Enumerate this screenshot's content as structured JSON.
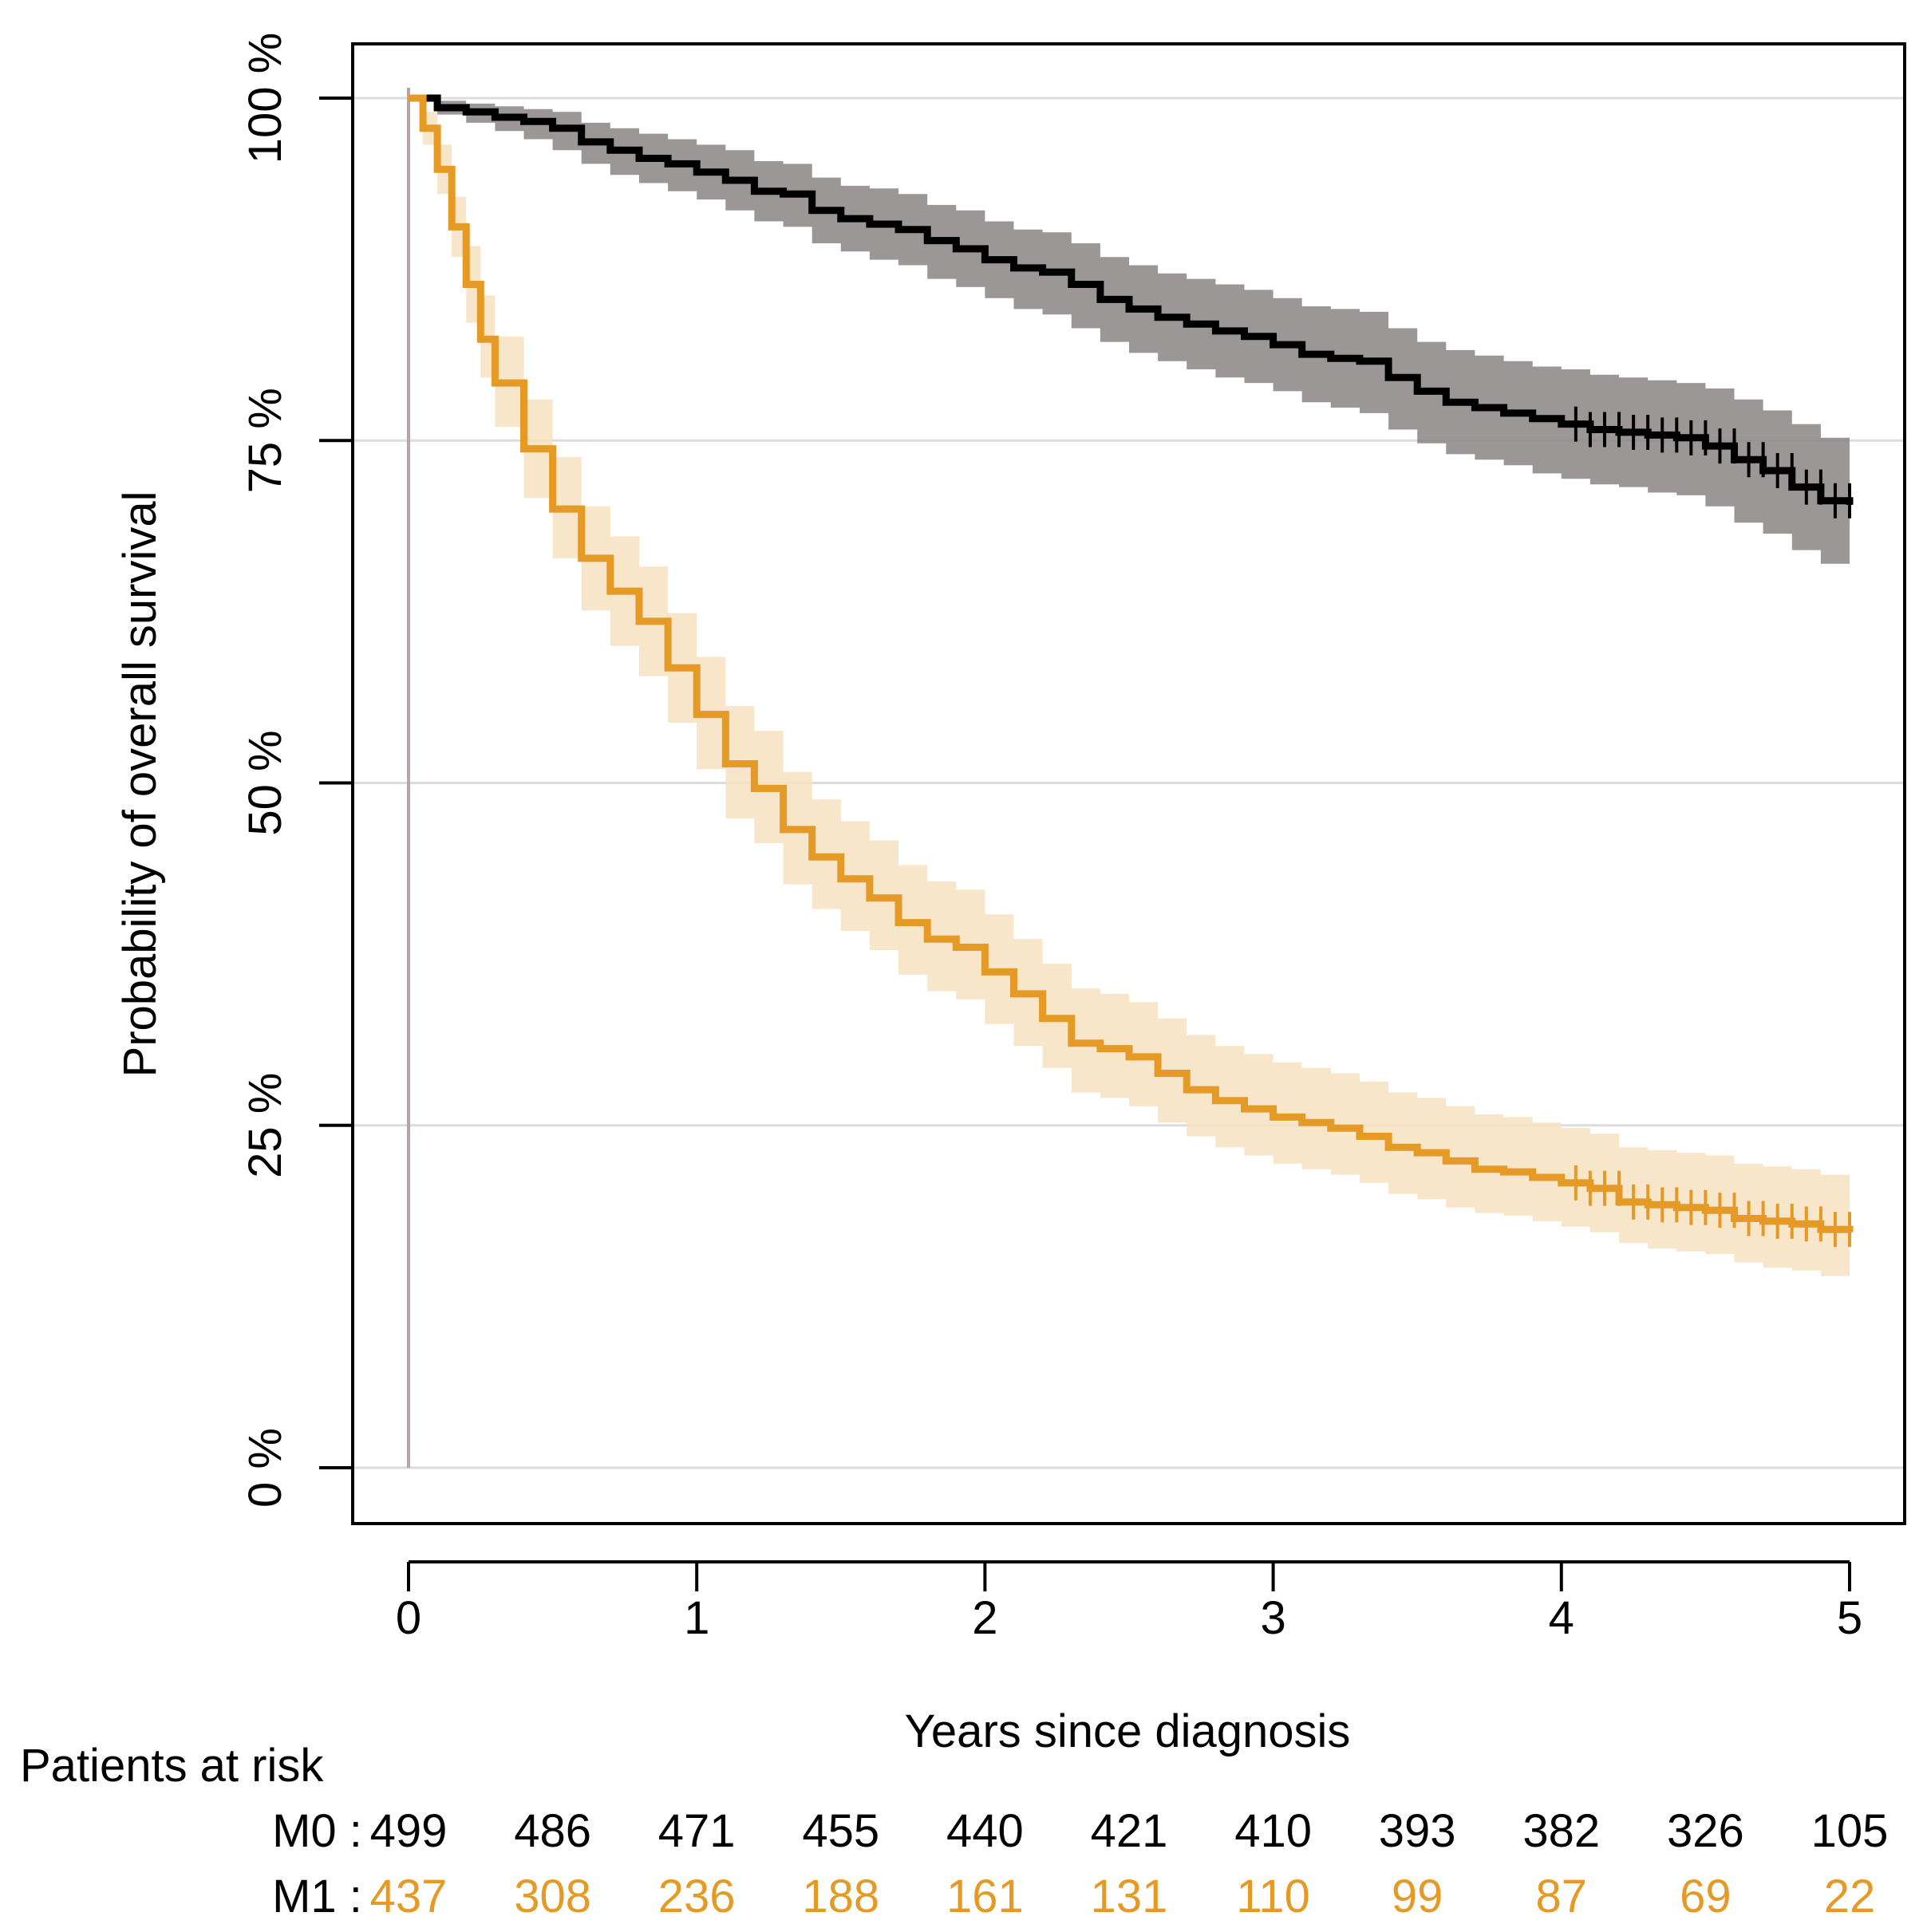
{
  "chart_data": {
    "type": "line",
    "subtype": "kaplan-meier",
    "title": "",
    "xlabel": "Years since diagnosis",
    "ylabel": "Probability of overall survival",
    "xlim": [
      0,
      5
    ],
    "ylim": [
      0,
      100
    ],
    "x_ticks": [
      "0",
      "1",
      "2",
      "3",
      "4",
      "5"
    ],
    "y_ticks": [
      "0 %",
      "25 %",
      "50 %",
      "75 %",
      "100 %"
    ],
    "grid": "horizontal",
    "series": [
      {
        "name": "M0",
        "color": "#000000",
        "band_color": "#8a8585",
        "x": [
          0,
          0.1,
          0.2,
          0.3,
          0.4,
          0.5,
          0.6,
          0.7,
          0.8,
          0.9,
          1.0,
          1.1,
          1.2,
          1.3,
          1.4,
          1.5,
          1.6,
          1.7,
          1.8,
          1.9,
          2.0,
          2.1,
          2.2,
          2.3,
          2.4,
          2.5,
          2.6,
          2.7,
          2.8,
          2.9,
          3.0,
          3.1,
          3.2,
          3.3,
          3.4,
          3.5,
          3.6,
          3.7,
          3.8,
          3.9,
          4.0,
          4.1,
          4.2,
          4.3,
          4.4,
          4.5,
          4.6,
          4.7,
          4.8,
          4.9,
          5.0
        ],
        "y": [
          100,
          99.3,
          99.0,
          98.6,
          98.3,
          97.8,
          96.8,
          96.2,
          95.6,
          95.2,
          94.6,
          94.0,
          93.2,
          93.0,
          91.8,
          91.2,
          90.8,
          90.4,
          89.6,
          89.0,
          88.2,
          87.6,
          87.3,
          86.4,
          85.3,
          84.6,
          84.0,
          83.5,
          83.0,
          82.6,
          82.0,
          81.3,
          81.0,
          80.8,
          79.6,
          78.6,
          77.8,
          77.4,
          77.0,
          76.6,
          76.2,
          75.8,
          75.6,
          75.4,
          75.2,
          74.6,
          73.6,
          72.8,
          71.6,
          70.6,
          70.3
        ],
        "lower": [
          100,
          98.8,
          98.2,
          97.6,
          97.0,
          96.2,
          95.2,
          94.4,
          93.8,
          93.2,
          92.6,
          91.8,
          91.0,
          90.6,
          89.4,
          88.8,
          88.2,
          87.8,
          86.8,
          86.2,
          85.4,
          84.6,
          84.2,
          83.2,
          82.2,
          81.4,
          80.8,
          80.2,
          79.6,
          79.2,
          78.6,
          77.8,
          77.4,
          77.0,
          75.8,
          74.8,
          74.0,
          73.6,
          73.2,
          72.6,
          72.2,
          71.8,
          71.6,
          71.2,
          71.0,
          70.2,
          69.0,
          68.2,
          67.0,
          66.0,
          65.8
        ],
        "upper": [
          100,
          99.8,
          99.6,
          99.4,
          99.2,
          99.0,
          98.2,
          97.8,
          97.4,
          97.0,
          96.6,
          96.2,
          95.4,
          95.2,
          94.2,
          93.6,
          93.4,
          93.0,
          92.2,
          91.8,
          91.0,
          90.4,
          90.2,
          89.4,
          88.4,
          87.8,
          87.2,
          86.8,
          86.4,
          86.0,
          85.4,
          84.8,
          84.6,
          84.4,
          83.2,
          82.2,
          81.6,
          81.2,
          80.8,
          80.4,
          80.2,
          79.8,
          79.6,
          79.4,
          79.2,
          78.8,
          78.0,
          77.2,
          76.2,
          75.2,
          74.8
        ]
      },
      {
        "name": "M1",
        "color": "#e49a25",
        "band_color": "#f6e2c1",
        "x": [
          0,
          0.05,
          0.1,
          0.15,
          0.2,
          0.25,
          0.3,
          0.4,
          0.5,
          0.6,
          0.7,
          0.8,
          0.9,
          1.0,
          1.1,
          1.2,
          1.3,
          1.4,
          1.5,
          1.6,
          1.7,
          1.8,
          1.9,
          2.0,
          2.1,
          2.2,
          2.3,
          2.4,
          2.5,
          2.6,
          2.7,
          2.8,
          2.9,
          3.0,
          3.1,
          3.2,
          3.3,
          3.4,
          3.5,
          3.6,
          3.7,
          3.8,
          3.9,
          4.0,
          4.1,
          4.2,
          4.3,
          4.4,
          4.5,
          4.6,
          4.7,
          4.8,
          4.9,
          5.0
        ],
        "y": [
          100,
          97.8,
          94.8,
          90.6,
          86.4,
          82.4,
          79.2,
          74.4,
          70.0,
          66.4,
          64.0,
          61.8,
          58.4,
          55.0,
          51.4,
          49.6,
          46.6,
          44.6,
          43.0,
          41.6,
          39.8,
          38.6,
          38.0,
          36.2,
          34.6,
          32.8,
          31.0,
          30.6,
          30.0,
          28.8,
          27.6,
          26.8,
          26.2,
          25.6,
          25.2,
          24.8,
          24.2,
          23.4,
          23.0,
          22.4,
          21.8,
          21.6,
          21.2,
          20.8,
          20.4,
          19.4,
          19.2,
          19.0,
          18.8,
          18.2,
          18.0,
          17.8,
          17.4,
          17.2
        ],
        "lower": [
          100,
          96.6,
          93.0,
          88.4,
          83.6,
          79.6,
          76.0,
          70.8,
          66.4,
          62.6,
          60.0,
          57.8,
          54.4,
          51.0,
          47.4,
          45.6,
          42.6,
          40.8,
          39.2,
          37.8,
          36.0,
          34.8,
          34.2,
          32.4,
          30.8,
          29.2,
          27.4,
          27.0,
          26.4,
          25.2,
          24.2,
          23.4,
          22.8,
          22.2,
          21.8,
          21.4,
          20.8,
          20.0,
          19.6,
          19.0,
          18.6,
          18.4,
          18.0,
          17.6,
          17.2,
          16.4,
          16.0,
          15.8,
          15.6,
          15.0,
          14.6,
          14.4,
          14.0,
          13.8
        ],
        "upper": [
          100,
          99.0,
          96.6,
          92.8,
          89.2,
          85.6,
          82.6,
          78.0,
          73.8,
          70.2,
          68.0,
          65.8,
          62.4,
          59.2,
          55.6,
          53.8,
          50.8,
          48.8,
          47.2,
          45.8,
          44.0,
          42.8,
          42.2,
          40.4,
          38.6,
          36.8,
          35.0,
          34.6,
          34.0,
          32.8,
          31.6,
          30.8,
          30.2,
          29.6,
          29.2,
          28.8,
          28.2,
          27.4,
          27.0,
          26.4,
          25.8,
          25.6,
          25.2,
          24.8,
          24.4,
          23.4,
          23.2,
          23.0,
          22.8,
          22.2,
          22.0,
          21.8,
          21.4,
          21.2
        ]
      }
    ],
    "risk_table": {
      "title": "Patients at risk",
      "times": [
        0,
        0.5,
        1,
        1.5,
        2,
        2.5,
        3,
        3.5,
        4,
        4.5,
        5
      ],
      "rows": [
        {
          "label": "M0 : ",
          "color": "#000000",
          "values": [
            "499",
            "486",
            "471",
            "455",
            "440",
            "421",
            "410",
            "393",
            "382",
            "326",
            "105"
          ]
        },
        {
          "label": "M1 : ",
          "color": "#e49a25",
          "values": [
            "437",
            "308",
            "236",
            "188",
            "161",
            "131",
            "110",
            "99",
            "87",
            "69",
            "22"
          ]
        }
      ]
    }
  }
}
